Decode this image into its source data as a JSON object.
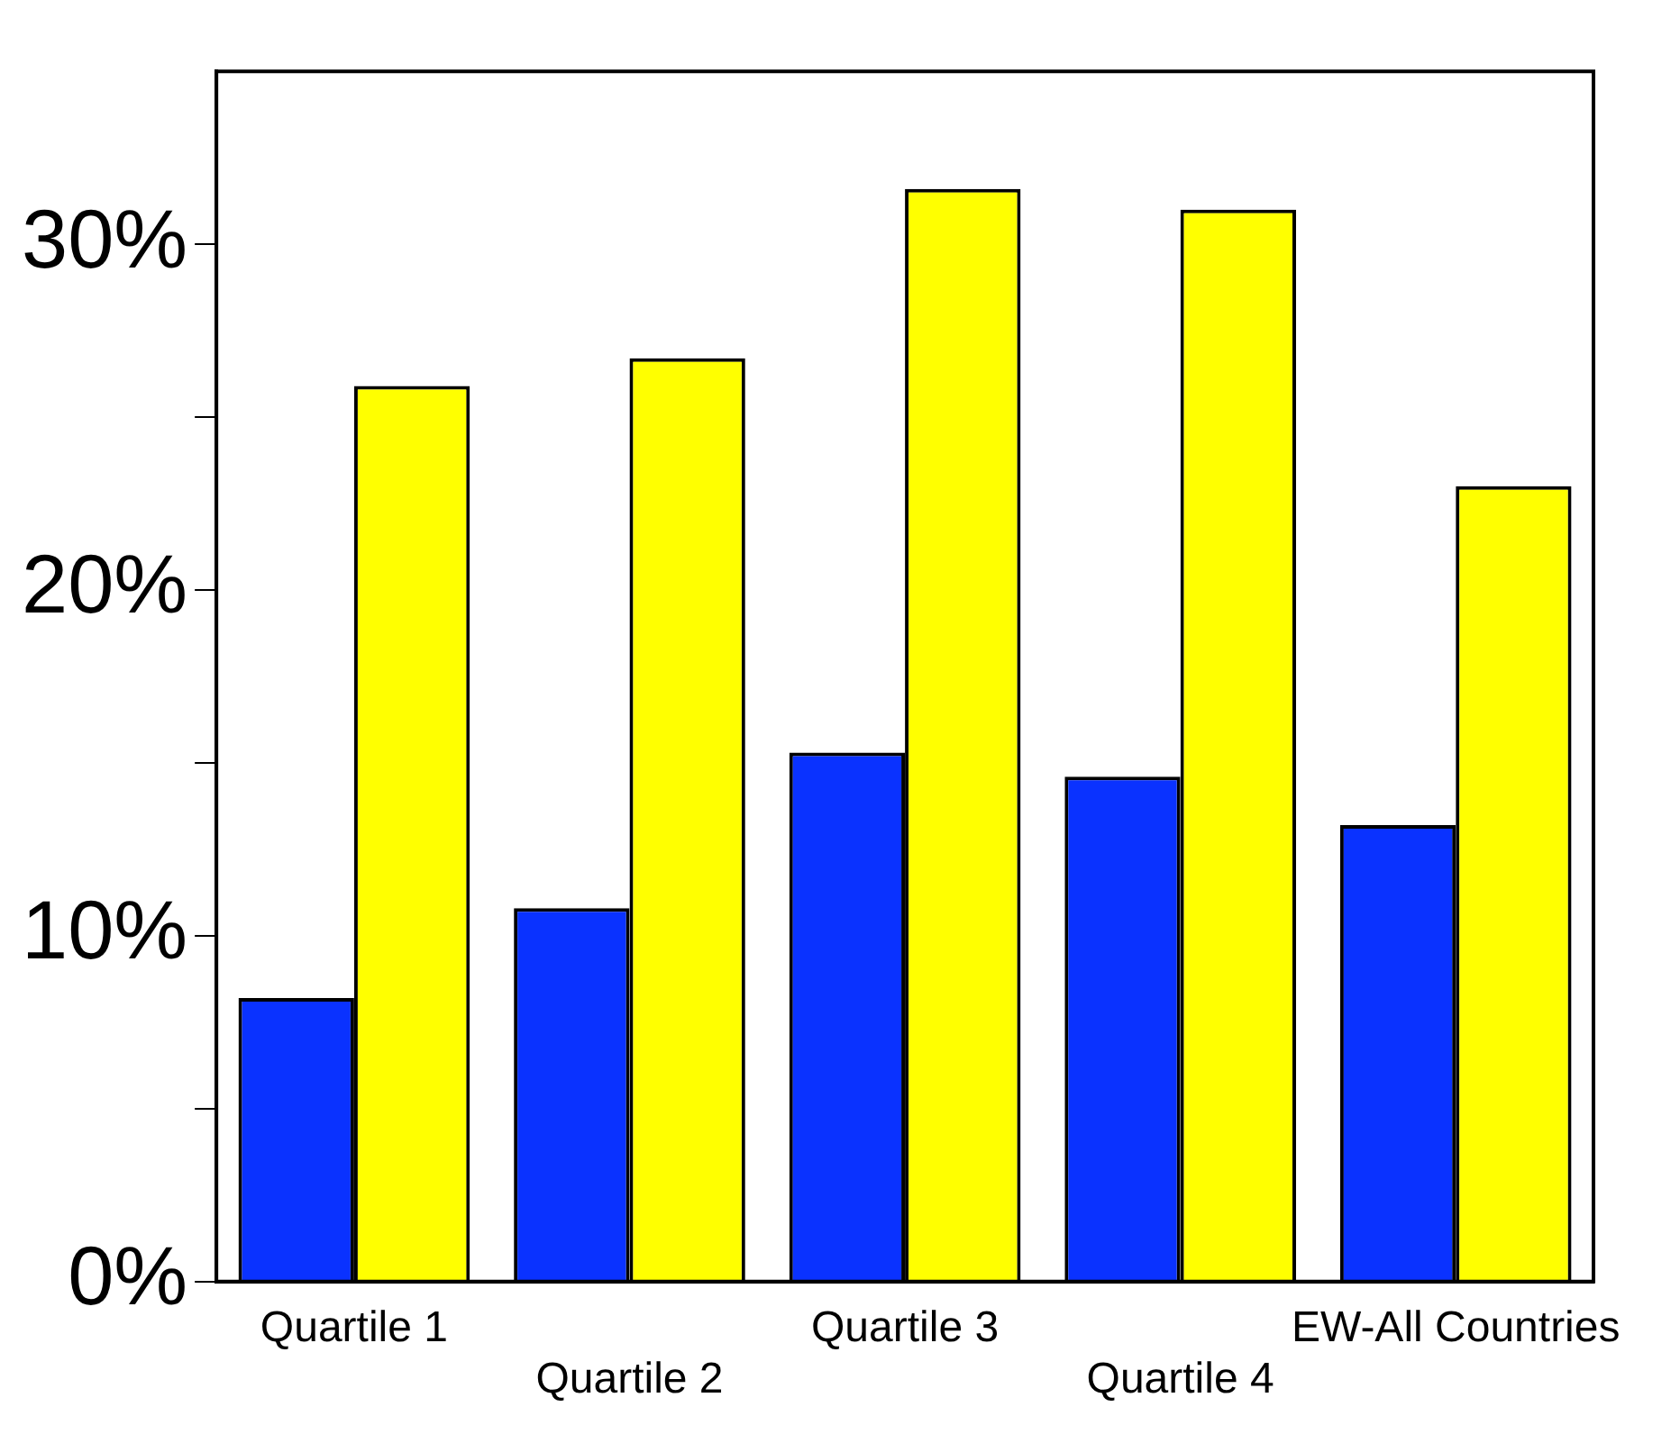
{
  "chart_data": {
    "type": "bar",
    "categories": [
      "Quartile 1",
      "Quartile 2",
      "Quartile 3",
      "Quartile 4",
      "EW-All Countries"
    ],
    "series": [
      {
        "color": "#0a32ff",
        "values": [
          8.2,
          10.8,
          15.3,
          14.6,
          13.2
        ]
      },
      {
        "color": "#ffff00",
        "values": [
          25.9,
          26.7,
          31.6,
          31.0,
          23.0
        ]
      }
    ],
    "ylim": [
      0,
      35
    ],
    "yticks": [
      {
        "value": 0,
        "label": "0%"
      },
      {
        "value": 5,
        "label": null
      },
      {
        "value": 10,
        "label": "10%"
      },
      {
        "value": 15,
        "label": null
      },
      {
        "value": 20,
        "label": "20%"
      },
      {
        "value": 25,
        "label": null
      },
      {
        "value": 30,
        "label": "30%"
      }
    ],
    "grid": false,
    "legend": false
  }
}
